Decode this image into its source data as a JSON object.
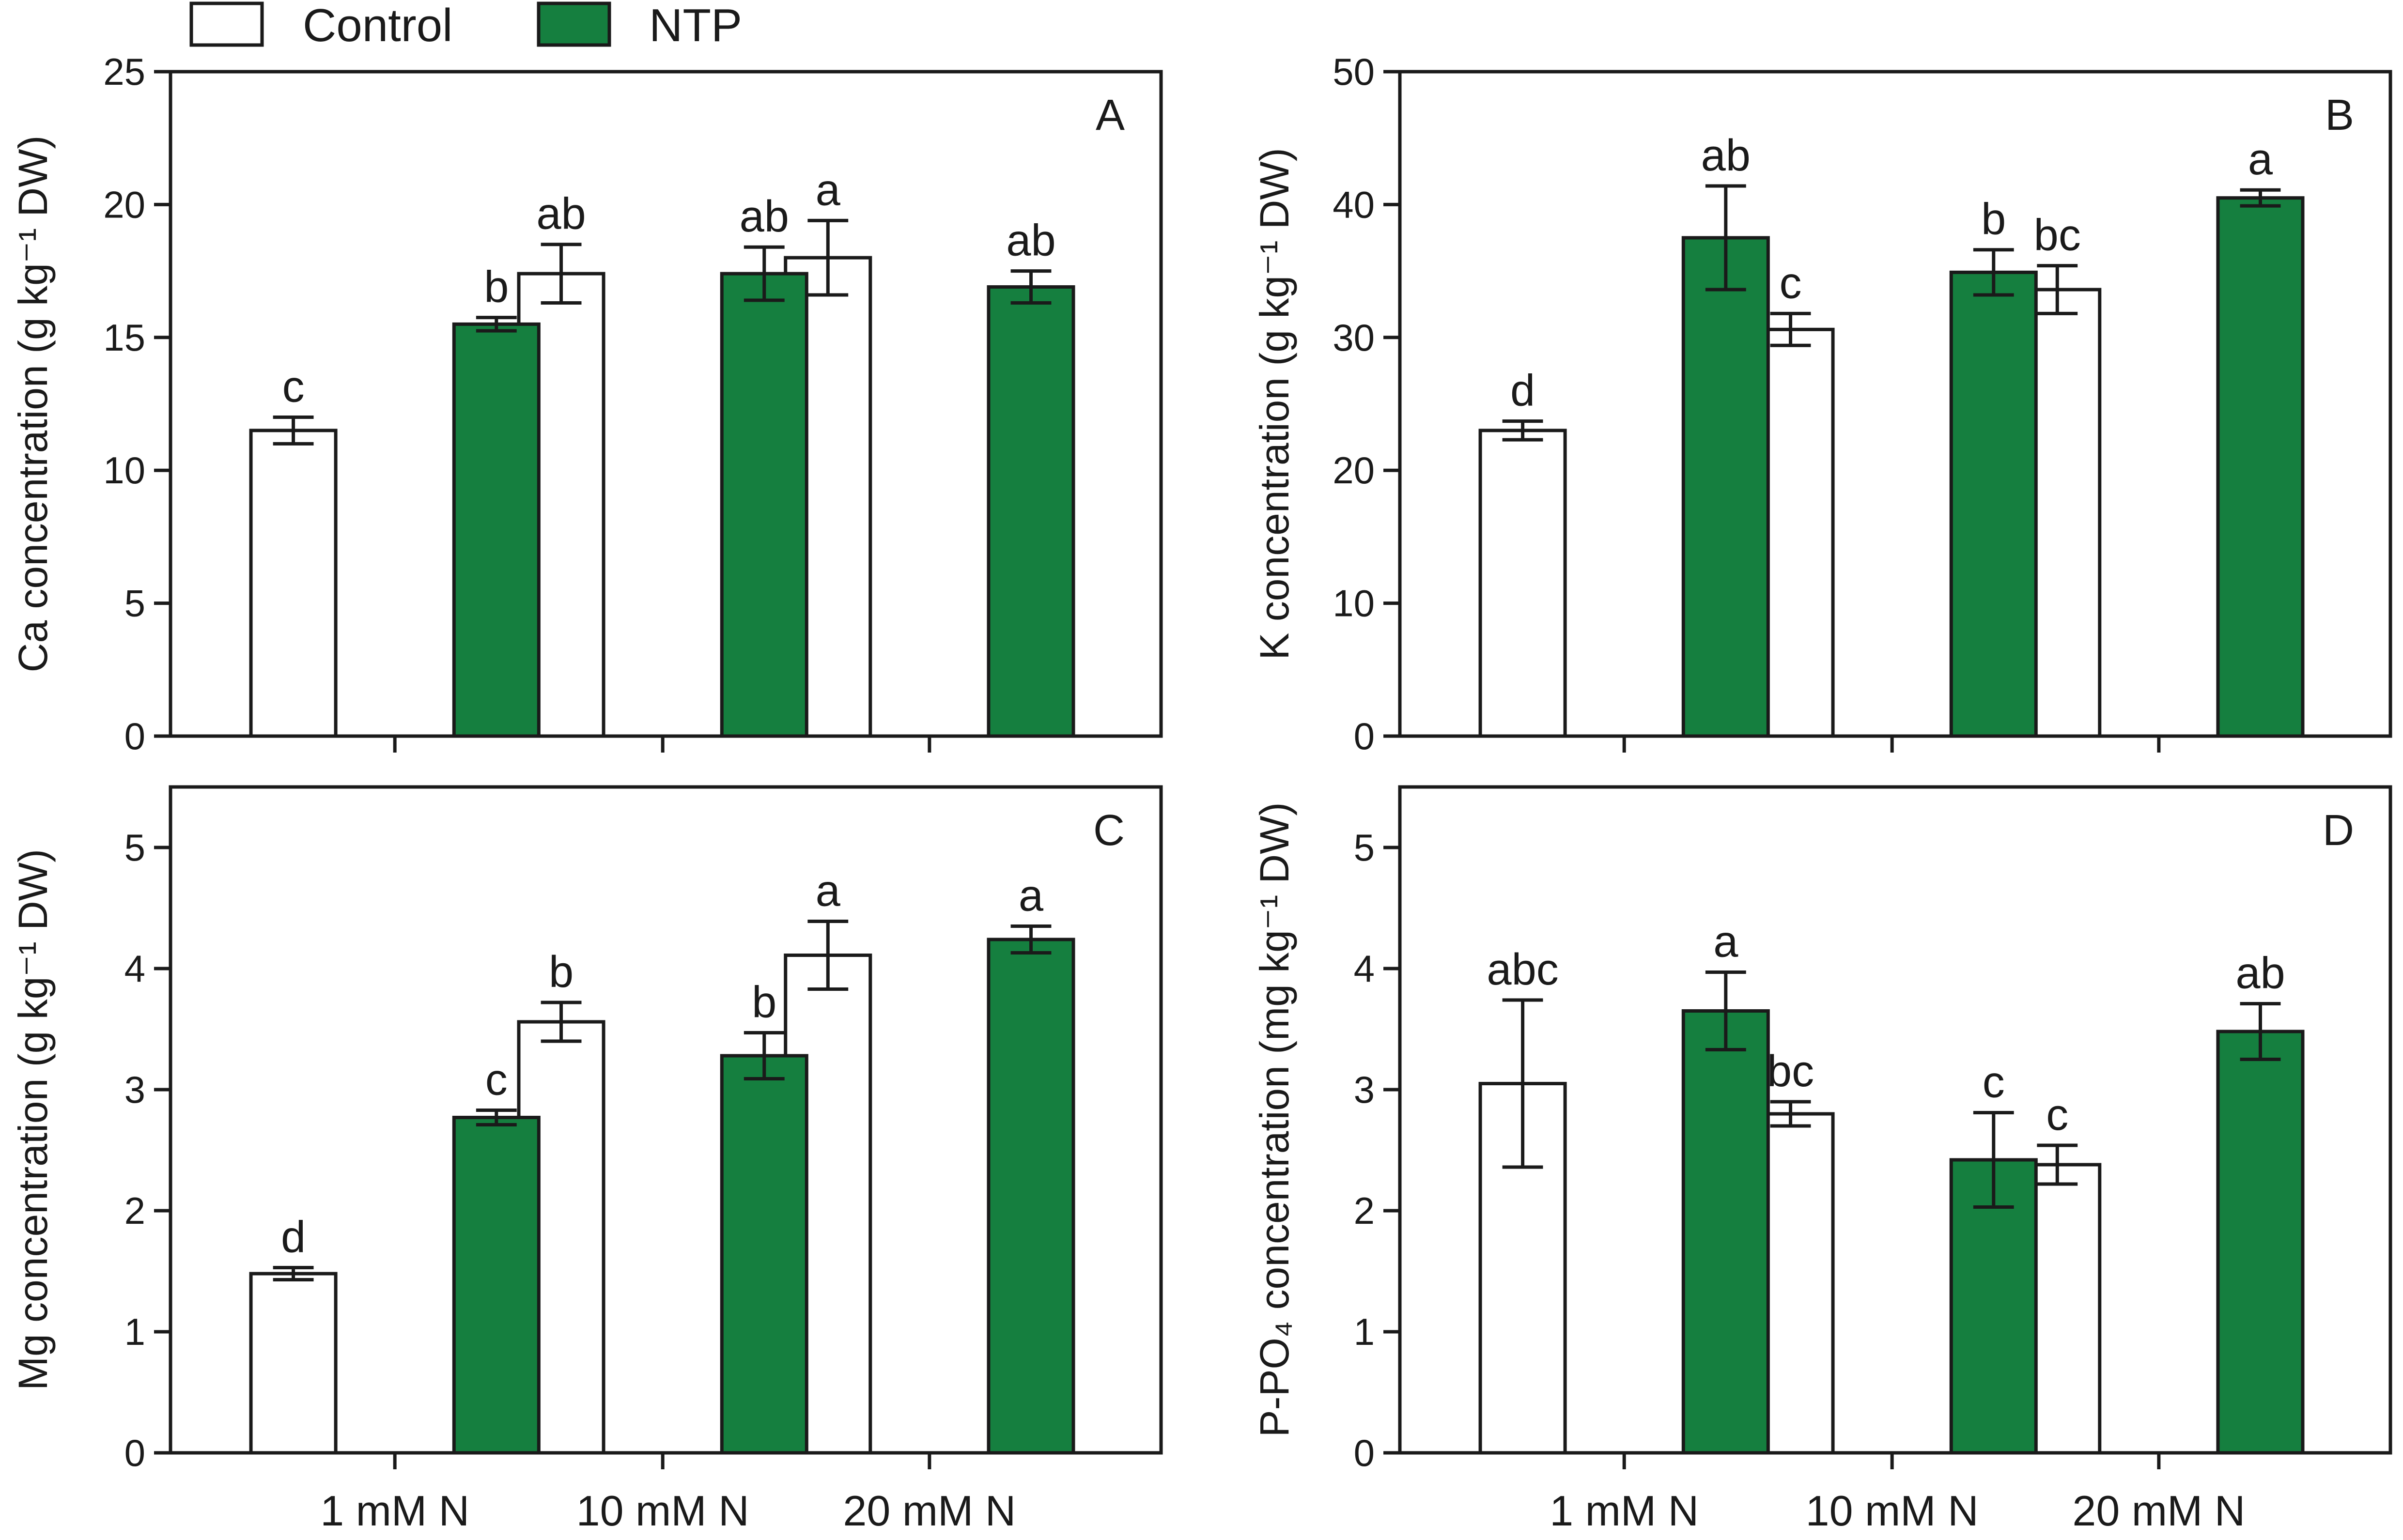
{
  "legend": {
    "items": [
      {
        "label": "Control",
        "color": "#ffffff"
      },
      {
        "label": "NTP",
        "color": "#157f3f"
      }
    ]
  },
  "colors": {
    "control": "#ffffff",
    "ntp": "#157f3f",
    "axis": "#1a1a1a"
  },
  "chart_data": [
    {
      "id": "A",
      "type": "bar",
      "panel_label": "A",
      "ylabel": "Ca concentration (g kg⁻¹ DW)",
      "ylim": [
        0,
        25
      ],
      "yticks": [
        0,
        5,
        10,
        15,
        20,
        25
      ],
      "categories": [
        "1 mM N",
        "10 mM N",
        "20 mM N"
      ],
      "show_category_labels": false,
      "series": [
        {
          "name": "Control",
          "values": [
            11.5,
            17.4,
            18.0
          ],
          "errors": [
            0.5,
            1.1,
            1.4
          ],
          "letters": [
            "c",
            "ab",
            "a"
          ]
        },
        {
          "name": "NTP",
          "values": [
            15.5,
            17.4,
            16.9
          ],
          "errors": [
            0.25,
            1.0,
            0.6
          ],
          "letters": [
            "b",
            "ab",
            "ab"
          ]
        }
      ]
    },
    {
      "id": "B",
      "type": "bar",
      "panel_label": "B",
      "ylabel": "K concentration (g kg⁻¹ DW)",
      "ylim": [
        0,
        50
      ],
      "yticks": [
        0,
        10,
        20,
        30,
        40,
        50
      ],
      "categories": [
        "1 mM N",
        "10 mM N",
        "20 mM N"
      ],
      "show_category_labels": false,
      "series": [
        {
          "name": "Control",
          "values": [
            23.0,
            30.6,
            33.6
          ],
          "errors": [
            0.7,
            1.2,
            1.8
          ],
          "letters": [
            "d",
            "c",
            "bc"
          ]
        },
        {
          "name": "NTP",
          "values": [
            37.5,
            34.9,
            40.5
          ],
          "errors": [
            3.9,
            1.7,
            0.6
          ],
          "letters": [
            "ab",
            "b",
            "a"
          ]
        }
      ]
    },
    {
      "id": "C",
      "type": "bar",
      "panel_label": "C",
      "ylabel": "Mg concentration (g kg⁻¹ DW)",
      "ylim": [
        0,
        5.5
      ],
      "yticks": [
        0,
        1,
        2,
        3,
        4,
        5
      ],
      "categories": [
        "1 mM N",
        "10 mM N",
        "20 mM N"
      ],
      "show_category_labels": true,
      "series": [
        {
          "name": "Control",
          "values": [
            1.48,
            3.56,
            4.11
          ],
          "errors": [
            0.05,
            0.16,
            0.28
          ],
          "letters": [
            "d",
            "b",
            "a"
          ]
        },
        {
          "name": "NTP",
          "values": [
            2.77,
            3.28,
            4.24
          ],
          "errors": [
            0.06,
            0.19,
            0.11
          ],
          "letters": [
            "c",
            "b",
            "a"
          ]
        }
      ]
    },
    {
      "id": "D",
      "type": "bar",
      "panel_label": "D",
      "ylabel": "P-PO₄ concentration (mg kg⁻¹ DW)",
      "ylim": [
        0,
        5.5
      ],
      "yticks": [
        0,
        1,
        2,
        3,
        4,
        5
      ],
      "categories": [
        "1 mM N",
        "10 mM N",
        "20 mM N"
      ],
      "show_category_labels": true,
      "series": [
        {
          "name": "Control",
          "values": [
            3.05,
            2.8,
            2.38
          ],
          "errors": [
            0.69,
            0.1,
            0.16
          ],
          "letters": [
            "abc",
            "bc",
            "c"
          ]
        },
        {
          "name": "NTP",
          "values": [
            3.65,
            2.42,
            3.48
          ],
          "errors": [
            0.32,
            0.39,
            0.23
          ],
          "letters": [
            "a",
            "c",
            "ab"
          ]
        }
      ]
    }
  ]
}
